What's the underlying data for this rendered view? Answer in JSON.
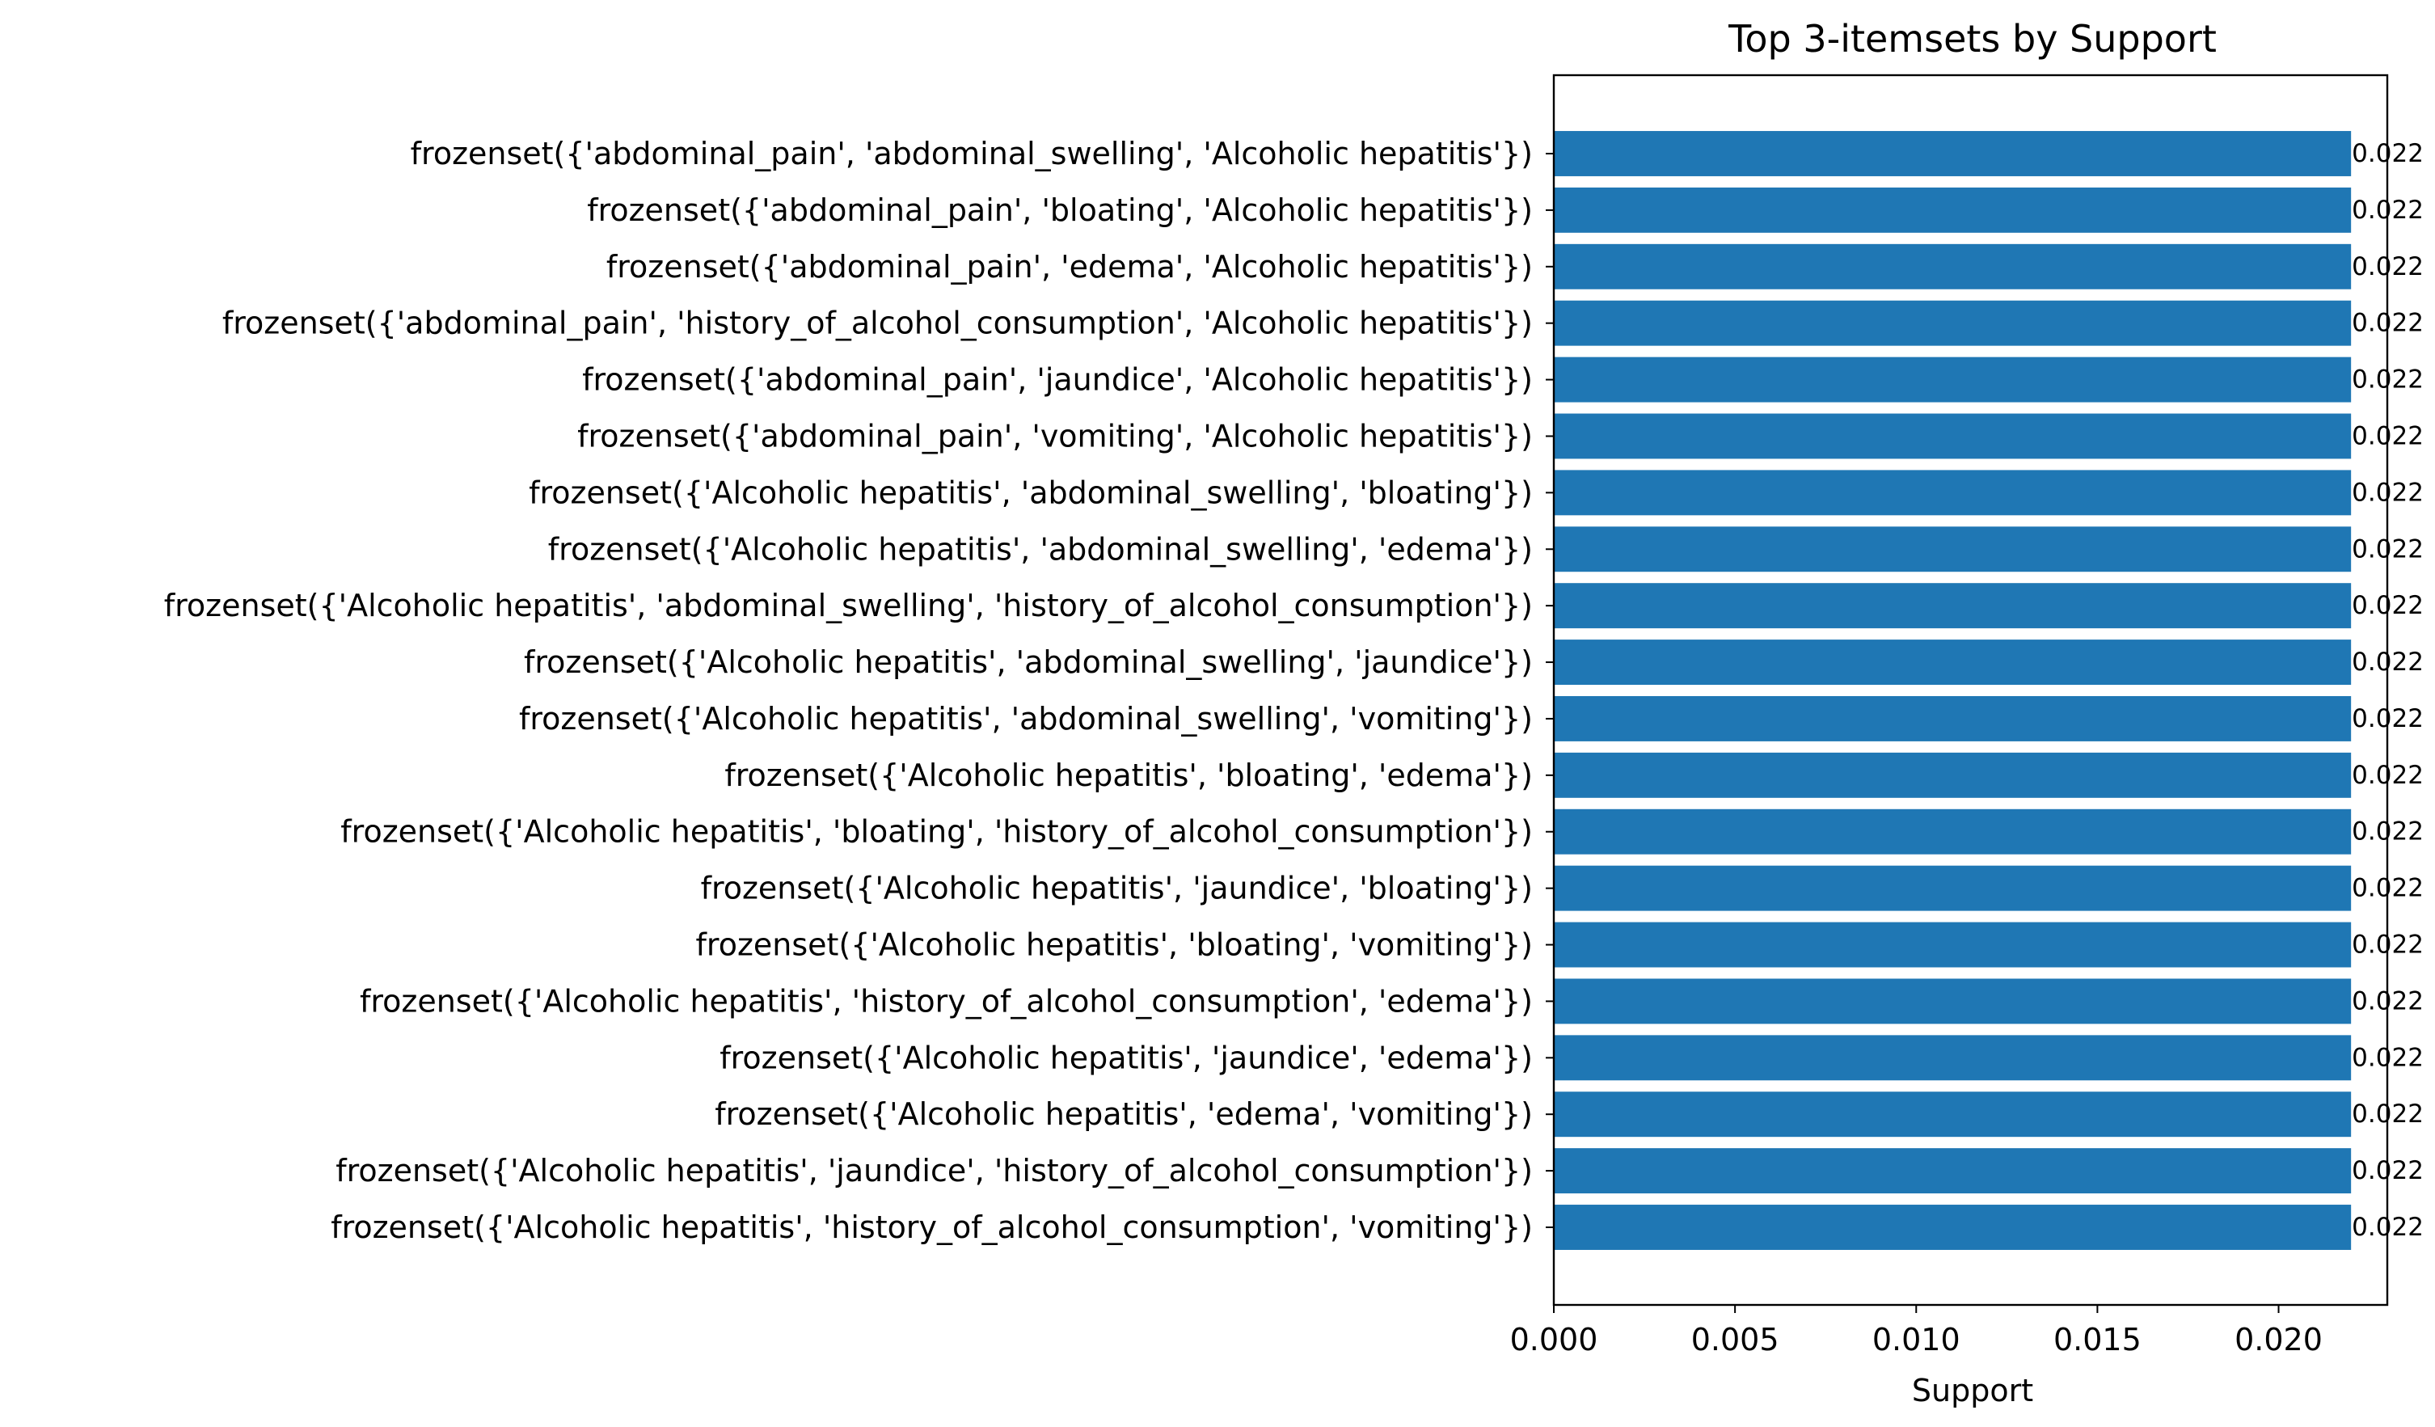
{
  "chart_data": {
    "type": "bar",
    "orientation": "horizontal",
    "title": "Top 3-itemsets by Support",
    "xlabel": "Support",
    "ylabel": "",
    "xlim": [
      0,
      0.023
    ],
    "xticks": [
      0.0,
      0.005,
      0.01,
      0.015,
      0.02
    ],
    "xtick_labels": [
      "0.000",
      "0.005",
      "0.010",
      "0.015",
      "0.020"
    ],
    "bar_color": "#1f77b4",
    "grid": false,
    "legend": "none",
    "categories": [
      "frozenset({'abdominal_pain', 'abdominal_swelling', 'Alcoholic hepatitis'})",
      "frozenset({'abdominal_pain', 'bloating', 'Alcoholic hepatitis'})",
      "frozenset({'abdominal_pain', 'edema', 'Alcoholic hepatitis'})",
      "frozenset({'abdominal_pain', 'history_of_alcohol_consumption', 'Alcoholic hepatitis'})",
      "frozenset({'abdominal_pain', 'jaundice', 'Alcoholic hepatitis'})",
      "frozenset({'abdominal_pain', 'vomiting', 'Alcoholic hepatitis'})",
      "frozenset({'Alcoholic hepatitis', 'abdominal_swelling', 'bloating'})",
      "frozenset({'Alcoholic hepatitis', 'abdominal_swelling', 'edema'})",
      "frozenset({'Alcoholic hepatitis', 'abdominal_swelling', 'history_of_alcohol_consumption'})",
      "frozenset({'Alcoholic hepatitis', 'abdominal_swelling', 'jaundice'})",
      "frozenset({'Alcoholic hepatitis', 'abdominal_swelling', 'vomiting'})",
      "frozenset({'Alcoholic hepatitis', 'bloating', 'edema'})",
      "frozenset({'Alcoholic hepatitis', 'bloating', 'history_of_alcohol_consumption'})",
      "frozenset({'Alcoholic hepatitis', 'jaundice', 'bloating'})",
      "frozenset({'Alcoholic hepatitis', 'bloating', 'vomiting'})",
      "frozenset({'Alcoholic hepatitis', 'history_of_alcohol_consumption', 'edema'})",
      "frozenset({'Alcoholic hepatitis', 'jaundice', 'edema'})",
      "frozenset({'Alcoholic hepatitis', 'edema', 'vomiting'})",
      "frozenset({'Alcoholic hepatitis', 'jaundice', 'history_of_alcohol_consumption'})",
      "frozenset({'Alcoholic hepatitis', 'history_of_alcohol_consumption', 'vomiting'})"
    ],
    "values": [
      0.022,
      0.022,
      0.022,
      0.022,
      0.022,
      0.022,
      0.022,
      0.022,
      0.022,
      0.022,
      0.022,
      0.022,
      0.022,
      0.022,
      0.022,
      0.022,
      0.022,
      0.022,
      0.022,
      0.022
    ],
    "value_labels": [
      "0.022",
      "0.022",
      "0.022",
      "0.022",
      "0.022",
      "0.022",
      "0.022",
      "0.022",
      "0.022",
      "0.022",
      "0.022",
      "0.022",
      "0.022",
      "0.022",
      "0.022",
      "0.022",
      "0.022",
      "0.022",
      "0.022",
      "0.022"
    ]
  }
}
